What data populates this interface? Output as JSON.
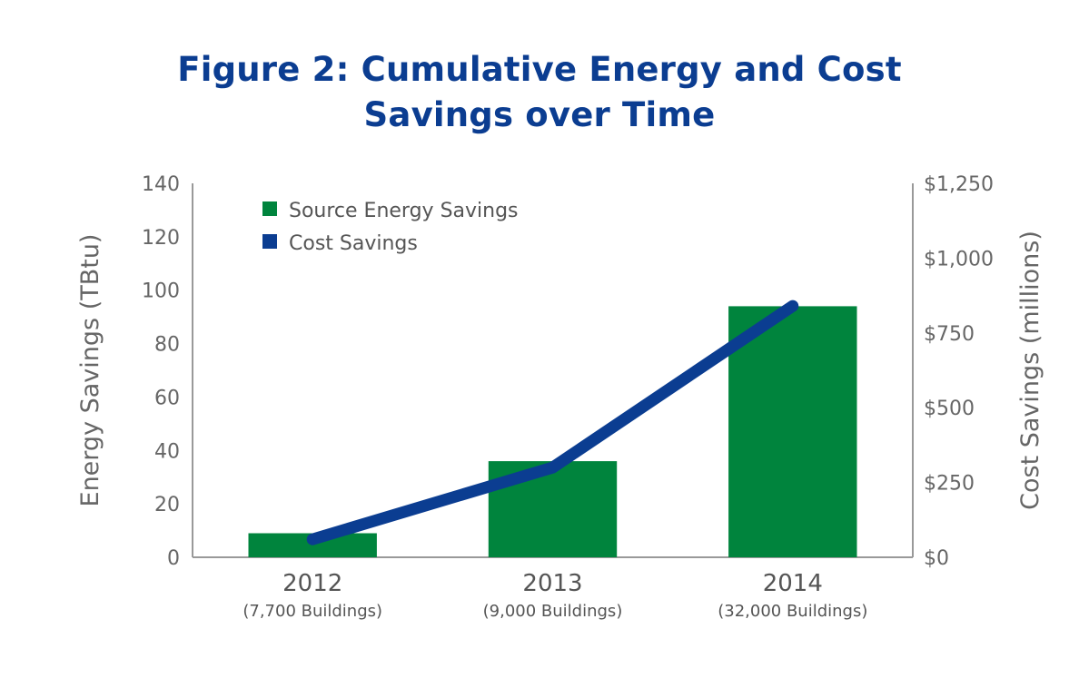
{
  "chart_data": {
    "type": "bar",
    "title_lines": [
      "Figure 2: Cumulative Energy and Cost",
      "Savings over Time"
    ],
    "categories": [
      "2012",
      "2013",
      "2014"
    ],
    "category_sublabels": [
      "(7,700 Buildings)",
      "(9,000 Buildings)",
      "(32,000 Buildings)"
    ],
    "ylabel": "Energy Savings (TBtu)",
    "y2label": "Cost Savings (millions)",
    "ylim": [
      0,
      140
    ],
    "y2lim": [
      0,
      1250
    ],
    "yticks": [
      "0",
      "20",
      "40",
      "60",
      "80",
      "100",
      "120",
      "140"
    ],
    "y2ticks": [
      "$0",
      "$250",
      "$500",
      "$750",
      "$1,000",
      "$1,250"
    ],
    "grid": false,
    "legend_position": "top-left",
    "series": [
      {
        "name": "Source Energy Savings",
        "kind": "bar",
        "axis": "left",
        "color": "#00843d",
        "values": [
          9,
          36,
          94
        ]
      },
      {
        "name": "Cost Savings",
        "kind": "line",
        "axis": "right",
        "color": "#0b3d91",
        "values": [
          60,
          300,
          840
        ]
      }
    ]
  }
}
